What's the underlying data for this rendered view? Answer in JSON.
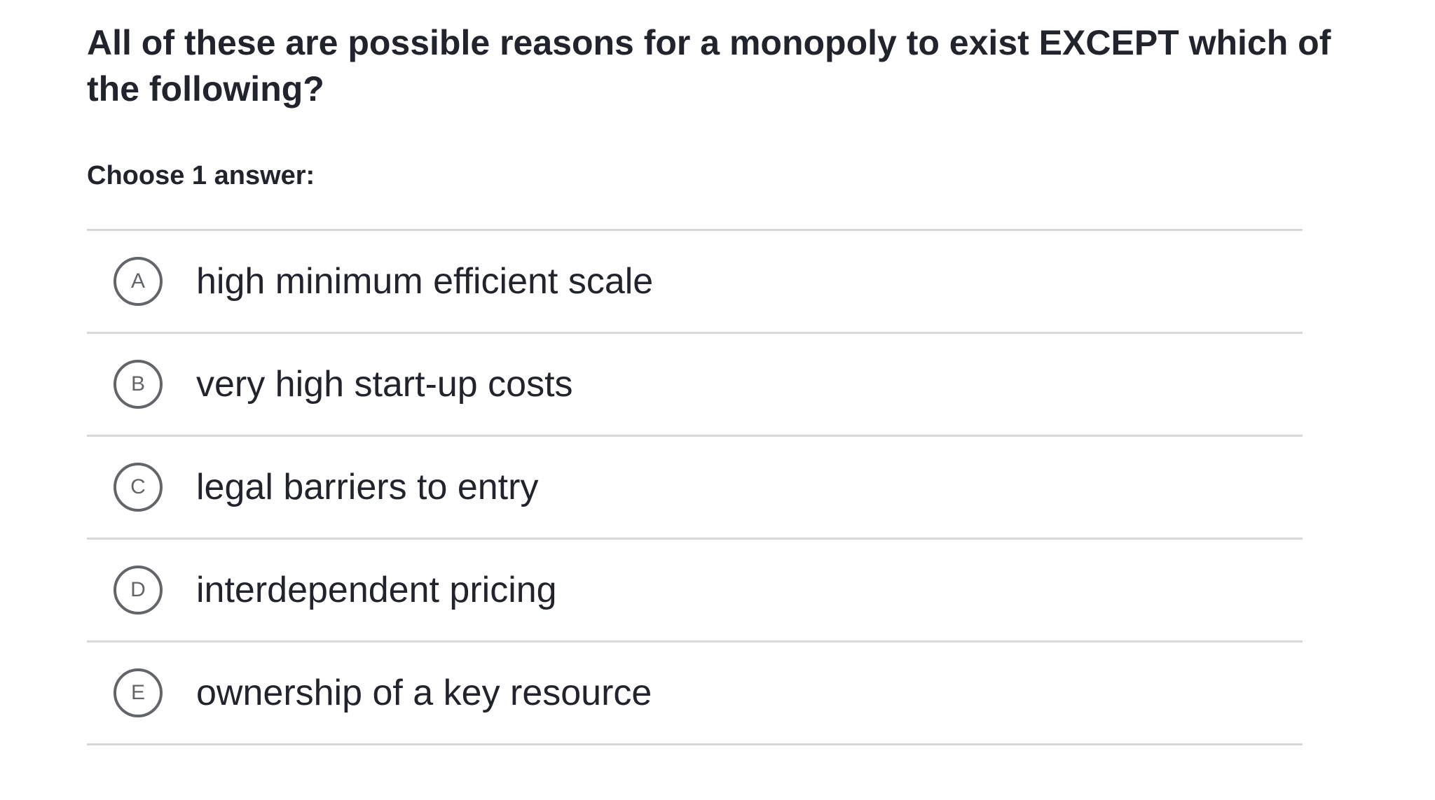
{
  "question": {
    "text": "All of these are possible reasons for a monopoly to exist EXCEPT which of the following?"
  },
  "instruction": "Choose 1 answer:",
  "choices": [
    {
      "letter": "A",
      "text": "high minimum efficient scale"
    },
    {
      "letter": "B",
      "text": "very high start-up costs"
    },
    {
      "letter": "C",
      "text": "legal barriers to entry"
    },
    {
      "letter": "D",
      "text": "interdependent pricing"
    },
    {
      "letter": "E",
      "text": "ownership of a key resource"
    }
  ],
  "colors": {
    "text": "#21242c",
    "letter_circle": "#626569",
    "divider": "#d6d8da",
    "background": "#ffffff"
  }
}
